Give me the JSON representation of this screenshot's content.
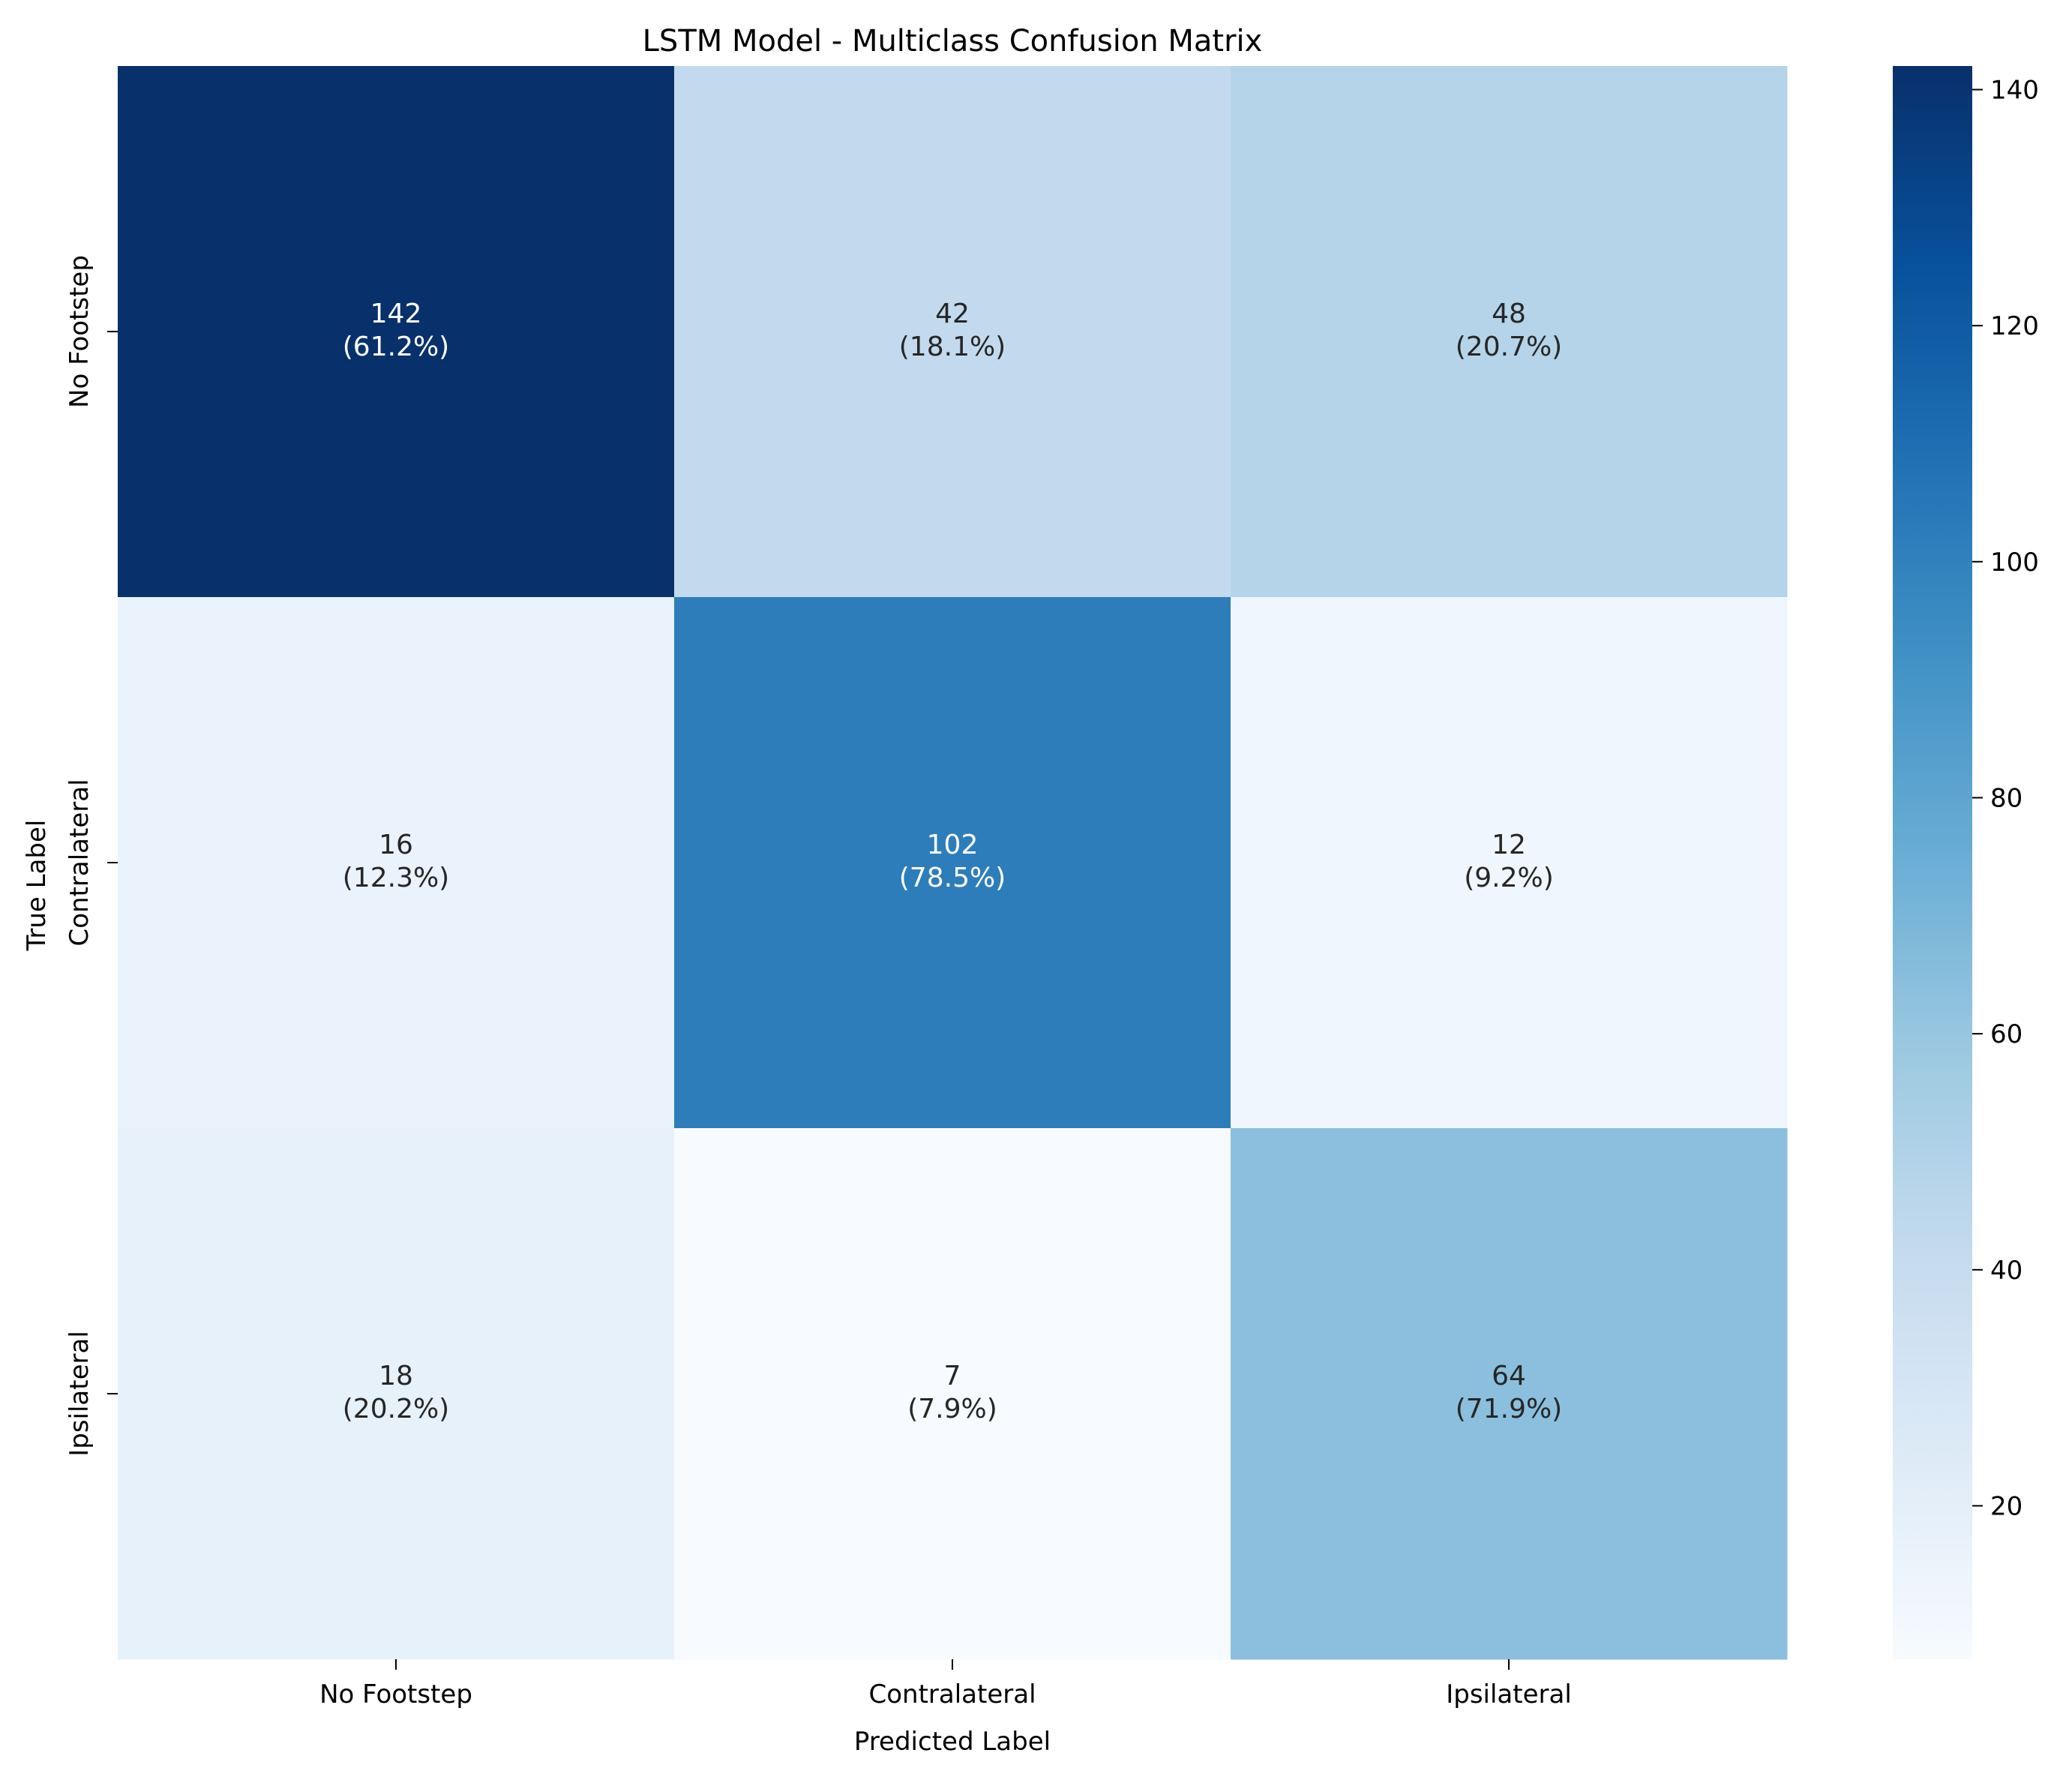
{
  "chart_data": {
    "type": "heatmap",
    "title": "LSTM Model - Multiclass Confusion Matrix",
    "xlabel": "Predicted Label",
    "ylabel": "True Label",
    "x_categories": [
      "No Footstep",
      "Contralateral",
      "Ipsilateral"
    ],
    "y_categories": [
      "No Footstep",
      "Contralateral",
      "Ipsilateral"
    ],
    "values": [
      [
        142,
        42,
        48
      ],
      [
        16,
        102,
        12
      ],
      [
        18,
        7,
        64
      ]
    ],
    "percent_labels": [
      [
        "(61.2%)",
        "(18.1%)",
        "(20.7%)"
      ],
      [
        "(12.3%)",
        "(78.5%)",
        "(9.2%)"
      ],
      [
        "(20.2%)",
        "(7.9%)",
        "(71.9%)"
      ]
    ],
    "colorbar": {
      "colormap": "Blues",
      "range": [
        7,
        142
      ],
      "ticks": [
        20,
        40,
        60,
        80,
        100,
        120,
        140
      ]
    }
  }
}
